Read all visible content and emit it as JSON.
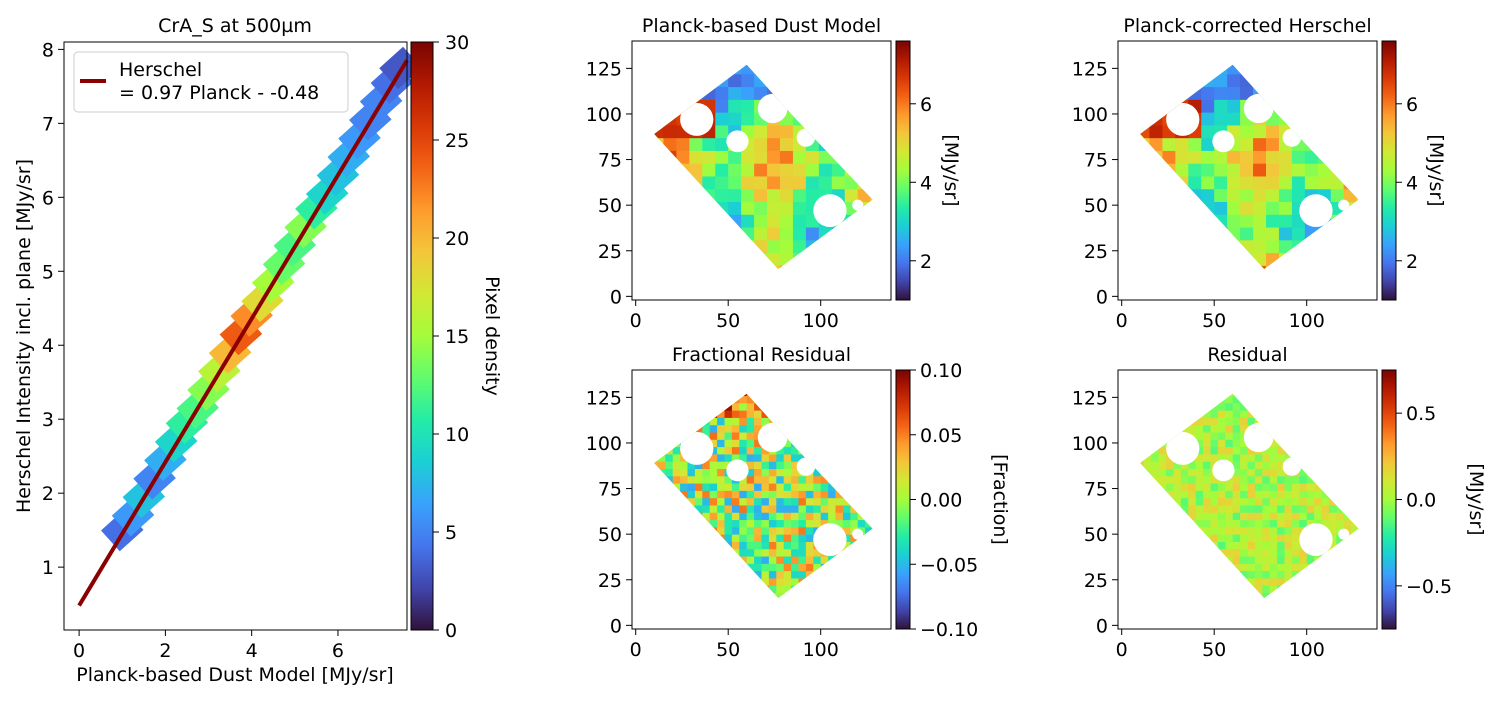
{
  "colormap_stops": [
    "#30123b",
    "#4145ab",
    "#4675ed",
    "#39a2fc",
    "#1bcfd4",
    "#24eca6",
    "#61fc6c",
    "#a4fc3b",
    "#d1e834",
    "#f3c63a",
    "#fe9b2d",
    "#f36315",
    "#d93806",
    "#b11901",
    "#7a0403"
  ],
  "chart_data": [
    {
      "id": "hist2d",
      "type": "heatmap",
      "title": "CrA_S at 500µm",
      "xlabel": "Planck-based Dust Model [MJy/sr]",
      "ylabel": "Herschel Intensity incl. plane [MJy/sr]",
      "xlim": [
        -0.35,
        7.6
      ],
      "ylim": [
        0.15,
        8.1
      ],
      "xticks": [
        "0",
        "2",
        "4",
        "6"
      ],
      "yticks": [
        "1",
        "2",
        "3",
        "4",
        "5",
        "6",
        "7",
        "8"
      ],
      "colorbar": {
        "label": "Pixel density",
        "ticks": [
          "0",
          "5",
          "10",
          "15",
          "20",
          "25",
          "30"
        ],
        "range": [
          0,
          30
        ]
      },
      "fit_line": {
        "slope": 0.97,
        "intercept": 0.48,
        "x_range": [
          0,
          7.6
        ],
        "color": "#8b0000"
      },
      "density_cells": [
        {
          "x": 1.0,
          "y": 1.5,
          "density": 4
        },
        {
          "x": 1.25,
          "y": 1.7,
          "density": 6
        },
        {
          "x": 1.5,
          "y": 1.95,
          "density": 8
        },
        {
          "x": 1.75,
          "y": 2.2,
          "density": 5
        },
        {
          "x": 2.0,
          "y": 2.45,
          "density": 7
        },
        {
          "x": 2.25,
          "y": 2.7,
          "density": 9
        },
        {
          "x": 2.5,
          "y": 2.95,
          "density": 11
        },
        {
          "x": 2.75,
          "y": 3.15,
          "density": 12
        },
        {
          "x": 3.0,
          "y": 3.4,
          "density": 14
        },
        {
          "x": 3.25,
          "y": 3.65,
          "density": 16
        },
        {
          "x": 3.5,
          "y": 3.9,
          "density": 20
        },
        {
          "x": 3.75,
          "y": 4.15,
          "density": 24
        },
        {
          "x": 4.0,
          "y": 4.4,
          "density": 22
        },
        {
          "x": 4.25,
          "y": 4.6,
          "density": 18
        },
        {
          "x": 4.5,
          "y": 4.85,
          "density": 15
        },
        {
          "x": 4.75,
          "y": 5.1,
          "density": 13
        },
        {
          "x": 5.0,
          "y": 5.35,
          "density": 12
        },
        {
          "x": 5.25,
          "y": 5.6,
          "density": 14
        },
        {
          "x": 5.5,
          "y": 5.85,
          "density": 11
        },
        {
          "x": 5.75,
          "y": 6.05,
          "density": 9
        },
        {
          "x": 6.0,
          "y": 6.3,
          "density": 8
        },
        {
          "x": 6.25,
          "y": 6.55,
          "density": 7
        },
        {
          "x": 6.5,
          "y": 6.8,
          "density": 6
        },
        {
          "x": 6.75,
          "y": 7.05,
          "density": 5
        },
        {
          "x": 7.0,
          "y": 7.3,
          "density": 5
        },
        {
          "x": 7.25,
          "y": 7.55,
          "density": 4
        },
        {
          "x": 7.45,
          "y": 7.75,
          "density": 3
        }
      ],
      "legend": {
        "placement": "upper-left",
        "entry_line1": "Herschel",
        "entry_line2": "= 0.97 Planck - -0.48"
      }
    },
    {
      "id": "dust_model",
      "type": "heatmap",
      "title": "Planck-based Dust Model",
      "xticks": [
        "0",
        "50",
        "100"
      ],
      "yticks": [
        "0",
        "25",
        "50",
        "75",
        "100",
        "125"
      ],
      "xlim": [
        -2,
        138
      ],
      "ylim": [
        -2,
        140
      ],
      "colorbar": {
        "label": "[MJy/sr]",
        "ticks": [
          "2",
          "4",
          "6"
        ],
        "range": [
          1,
          7.6
        ]
      },
      "field_polygon": [
        [
          10,
          89
        ],
        [
          60,
          127
        ],
        [
          84,
          100
        ],
        [
          128,
          53
        ],
        [
          77,
          15
        ]
      ],
      "masked_holes": [
        {
          "x": 33,
          "y": 97,
          "r": 9
        },
        {
          "x": 74,
          "y": 103,
          "r": 8
        },
        {
          "x": 55,
          "y": 85,
          "r": 6
        },
        {
          "x": 92,
          "y": 87,
          "r": 5
        },
        {
          "x": 105,
          "y": 47,
          "r": 9
        },
        {
          "x": 120,
          "y": 50,
          "r": 3
        }
      ]
    },
    {
      "id": "corrected_herschel",
      "type": "heatmap",
      "title": "Planck-corrected Herschel",
      "xticks": [
        "0",
        "50",
        "100"
      ],
      "yticks": [
        "0",
        "25",
        "50",
        "75",
        "100",
        "125"
      ],
      "xlim": [
        -2,
        138
      ],
      "ylim": [
        -2,
        140
      ],
      "colorbar": {
        "label": "[MJy/sr]",
        "ticks": [
          "2",
          "4",
          "6"
        ],
        "range": [
          1,
          7.6
        ]
      },
      "field_polygon": [
        [
          10,
          89
        ],
        [
          60,
          127
        ],
        [
          84,
          100
        ],
        [
          128,
          53
        ],
        [
          77,
          15
        ]
      ],
      "masked_holes": [
        {
          "x": 33,
          "y": 97,
          "r": 9
        },
        {
          "x": 74,
          "y": 103,
          "r": 8
        },
        {
          "x": 55,
          "y": 85,
          "r": 6
        },
        {
          "x": 92,
          "y": 87,
          "r": 5
        },
        {
          "x": 105,
          "y": 47,
          "r": 9
        },
        {
          "x": 120,
          "y": 50,
          "r": 3
        }
      ]
    },
    {
      "id": "fractional_residual",
      "type": "heatmap",
      "title": "Fractional Residual",
      "xticks": [
        "0",
        "50",
        "100"
      ],
      "yticks": [
        "0",
        "25",
        "50",
        "75",
        "100",
        "125"
      ],
      "xlim": [
        -2,
        138
      ],
      "ylim": [
        -2,
        140
      ],
      "colorbar": {
        "label": "[Fraction]",
        "ticks": [
          "0.10",
          "0.05",
          "0.00",
          "−0.05",
          "−0.10"
        ],
        "range": [
          -0.1,
          0.1
        ]
      },
      "field_polygon": [
        [
          10,
          89
        ],
        [
          60,
          127
        ],
        [
          84,
          100
        ],
        [
          128,
          53
        ],
        [
          77,
          15
        ]
      ],
      "masked_holes": [
        {
          "x": 33,
          "y": 97,
          "r": 9
        },
        {
          "x": 74,
          "y": 103,
          "r": 8
        },
        {
          "x": 55,
          "y": 85,
          "r": 6
        },
        {
          "x": 92,
          "y": 87,
          "r": 5
        },
        {
          "x": 105,
          "y": 47,
          "r": 9
        },
        {
          "x": 120,
          "y": 50,
          "r": 3
        }
      ]
    },
    {
      "id": "residual",
      "type": "heatmap",
      "title": "Residual",
      "xticks": [
        "0",
        "50",
        "100"
      ],
      "yticks": [
        "0",
        "25",
        "50",
        "75",
        "100",
        "125"
      ],
      "xlim": [
        -2,
        138
      ],
      "ylim": [
        -2,
        140
      ],
      "colorbar": {
        "label": "[MJy/sr]",
        "ticks": [
          "0.5",
          "0.0",
          "−0.5"
        ],
        "range": [
          -0.75,
          0.75
        ]
      },
      "field_polygon": [
        [
          10,
          89
        ],
        [
          60,
          127
        ],
        [
          84,
          100
        ],
        [
          128,
          53
        ],
        [
          77,
          15
        ]
      ],
      "masked_holes": [
        {
          "x": 33,
          "y": 97,
          "r": 9
        },
        {
          "x": 74,
          "y": 103,
          "r": 8
        },
        {
          "x": 55,
          "y": 85,
          "r": 6
        },
        {
          "x": 92,
          "y": 87,
          "r": 5
        },
        {
          "x": 105,
          "y": 47,
          "r": 9
        },
        {
          "x": 120,
          "y": 50,
          "r": 3
        }
      ]
    }
  ]
}
